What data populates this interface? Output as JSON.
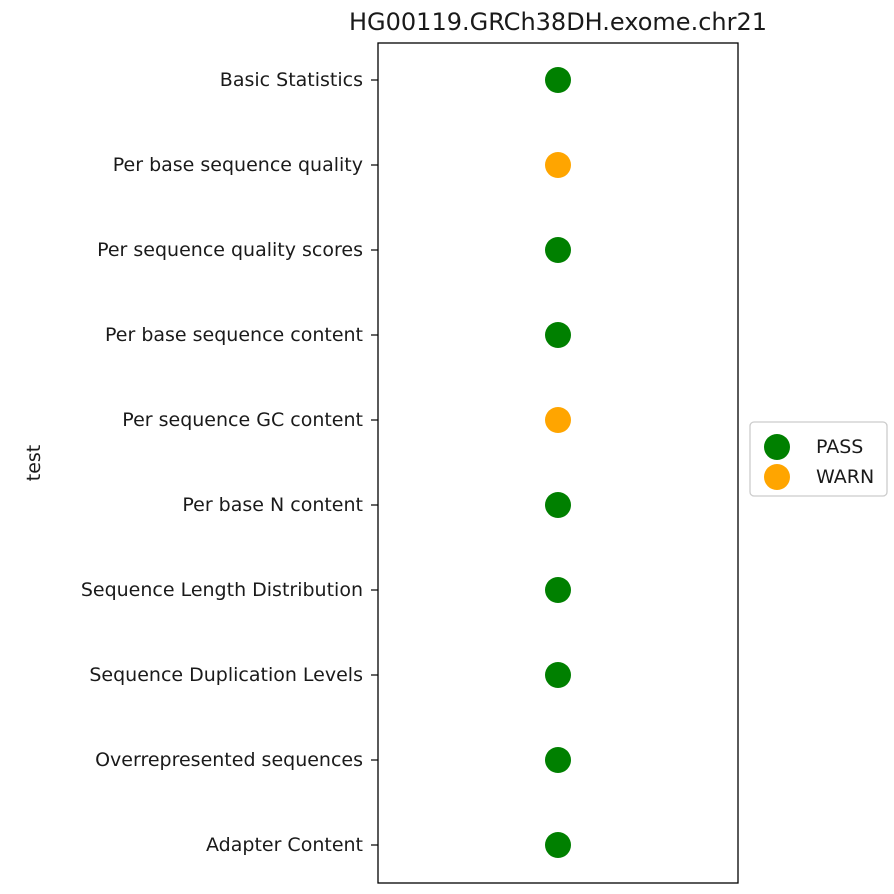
{
  "chart_data": {
    "type": "scatter",
    "title": "HG00119.GRCh38DH.exome.chr21",
    "ylabel": "test",
    "xlabel": "",
    "grid": false,
    "legend_placement": "center-right",
    "categories": [
      "Basic Statistics",
      "Per base sequence quality",
      "Per sequence quality scores",
      "Per base sequence content",
      "Per sequence GC content",
      "Per base N content",
      "Sequence Length Distribution",
      "Sequence Duplication Levels",
      "Overrepresented sequences",
      "Adapter Content"
    ],
    "values": [
      "PASS",
      "WARN",
      "PASS",
      "PASS",
      "WARN",
      "PASS",
      "PASS",
      "PASS",
      "PASS",
      "PASS"
    ],
    "legend": [
      {
        "label": "PASS",
        "color": "#008000"
      },
      {
        "label": "WARN",
        "color": "#ffa500"
      }
    ]
  }
}
